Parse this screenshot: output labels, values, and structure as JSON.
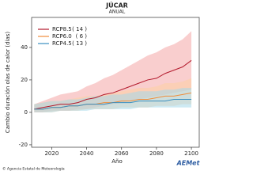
{
  "chart_data": {
    "type": "line",
    "title": "JÚCAR",
    "subtitle": "ANUAL",
    "x_label": "Año",
    "y_label": "Cambio duración olas de calor (días)",
    "footer": "© Agencia Estatal de Meteorología",
    "logo": "AEMet",
    "x": [
      2010,
      2015,
      2020,
      2025,
      2030,
      2035,
      2040,
      2045,
      2050,
      2055,
      2060,
      2065,
      2070,
      2075,
      2080,
      2085,
      2090,
      2095,
      2100
    ],
    "xlim": [
      2008.5,
      2104.5
    ],
    "xticks": [
      2020,
      2040,
      2060,
      2080,
      2100
    ],
    "ylim": [
      -21.5,
      58.5
    ],
    "yticks": [
      -20,
      0,
      20,
      40
    ],
    "series": [
      {
        "name": "RCP8.5",
        "count": "( 14 )",
        "color": "#b2182b",
        "band_color": "#f4a6a6",
        "values": [
          2,
          3,
          4,
          5,
          5,
          6,
          8,
          9,
          11,
          12,
          14,
          16,
          18,
          20,
          21,
          24,
          26,
          28,
          32
        ],
        "upper": [
          5,
          7,
          9,
          11,
          12,
          13,
          16,
          18,
          21,
          23,
          26,
          29,
          32,
          35,
          37,
          40,
          42,
          45,
          50
        ],
        "lower": [
          0,
          0,
          1,
          1,
          1,
          2,
          2,
          3,
          4,
          5,
          6,
          7,
          8,
          9,
          10,
          11,
          12,
          13,
          14
        ]
      },
      {
        "name": "RCP6.0",
        "count": "( 6 )",
        "color": "#f08c3a",
        "band_color": "#fdd0a2",
        "values": [
          2,
          2,
          3,
          3,
          4,
          4,
          5,
          5,
          6,
          6,
          7,
          7,
          8,
          8,
          9,
          10,
          10,
          11,
          12
        ],
        "upper": [
          5,
          6,
          7,
          7,
          8,
          9,
          10,
          10,
          11,
          12,
          13,
          14,
          15,
          15,
          16,
          18,
          18,
          19,
          21
        ],
        "lower": [
          0,
          0,
          0,
          1,
          1,
          1,
          2,
          2,
          2,
          2,
          3,
          3,
          3,
          3,
          4,
          4,
          4,
          5,
          5
        ]
      },
      {
        "name": "RCP4.5",
        "count": "( 13 )",
        "color": "#3a8fc0",
        "band_color": "#a6d8ea",
        "values": [
          2,
          2,
          3,
          3,
          4,
          4,
          5,
          5,
          5,
          6,
          6,
          6,
          7,
          7,
          7,
          7,
          8,
          8,
          8
        ],
        "upper": [
          5,
          6,
          7,
          7,
          8,
          8,
          9,
          10,
          10,
          11,
          11,
          12,
          13,
          13,
          13,
          14,
          14,
          15,
          15
        ],
        "lower": [
          0,
          0,
          0,
          1,
          1,
          1,
          1,
          2,
          2,
          2,
          2,
          2,
          3,
          3,
          3,
          3,
          3,
          3,
          3
        ]
      }
    ]
  }
}
